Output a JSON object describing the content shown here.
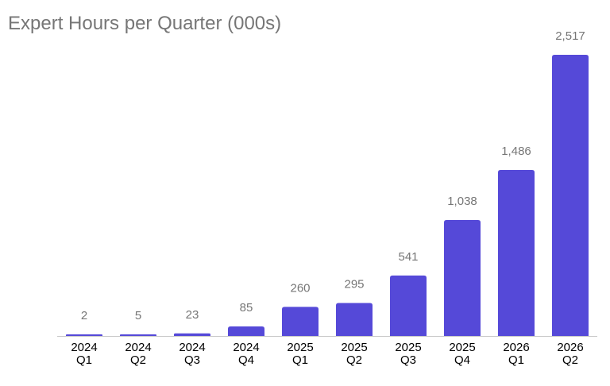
{
  "chart_data": {
    "type": "bar",
    "title": "Expert Hours per Quarter (000s)",
    "categories": [
      [
        "2024",
        "Q1"
      ],
      [
        "2024",
        "Q2"
      ],
      [
        "2024",
        "Q3"
      ],
      [
        "2024",
        "Q4"
      ],
      [
        "2025",
        "Q1"
      ],
      [
        "2025",
        "Q2"
      ],
      [
        "2025",
        "Q3"
      ],
      [
        "2025",
        "Q4"
      ],
      [
        "2026",
        "Q1"
      ],
      [
        "2026",
        "Q2"
      ]
    ],
    "values": [
      2,
      5,
      23,
      85,
      260,
      295,
      541,
      1038,
      1486,
      2517
    ],
    "value_labels": [
      "2",
      "5",
      "23",
      "85",
      "260",
      "295",
      "541",
      "1,038",
      "1,486",
      "2,517"
    ],
    "ylim": [
      0,
      2517
    ],
    "grid": false,
    "legend": "none",
    "colors": {
      "bar": "#5549d8",
      "axis": "#c8c8c8",
      "value_label": "#767676",
      "tick_label": "#000000",
      "title": "#767676"
    }
  }
}
